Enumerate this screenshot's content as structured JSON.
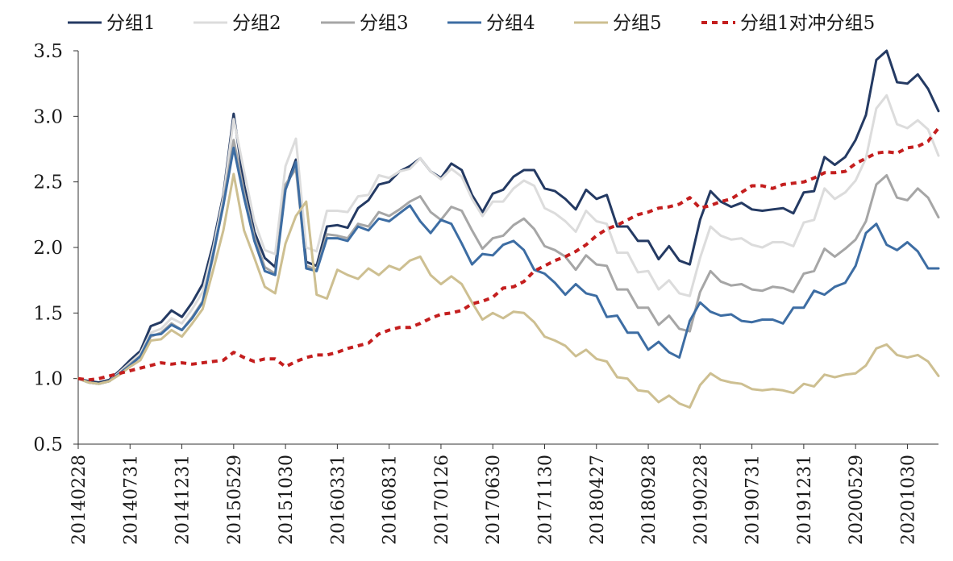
{
  "chart_data": {
    "type": "line",
    "title": "",
    "xlabel": "",
    "ylabel": "",
    "ylim": [
      0.5,
      3.5
    ],
    "yticks": [
      "0.5",
      "1.0",
      "1.5",
      "2.0",
      "2.5",
      "3.0",
      "3.5"
    ],
    "ytick_values": [
      0.5,
      1.0,
      1.5,
      2.0,
      2.5,
      3.0,
      3.5
    ],
    "xtick_labels": [
      "20140228",
      "20140731",
      "20141231",
      "20150529",
      "20151030",
      "20160331",
      "20160831",
      "20170126",
      "20170630",
      "20171130",
      "20180427",
      "20180928",
      "20190228",
      "20190731",
      "20191231",
      "20200529",
      "20201030"
    ],
    "xtick_indices": [
      0,
      5,
      10,
      15,
      20,
      25,
      30,
      35,
      40,
      45,
      50,
      55,
      60,
      65,
      70,
      75,
      80
    ],
    "n_points": 84,
    "legend_position": "top",
    "series": [
      {
        "name": "分组1",
        "color": "#243a63",
        "dash": false,
        "values": [
          1.0,
          0.98,
          0.97,
          0.99,
          1.06,
          1.14,
          1.21,
          1.4,
          1.43,
          1.52,
          1.47,
          1.58,
          1.72,
          2.02,
          2.4,
          3.02,
          2.48,
          2.12,
          1.92,
          1.85,
          2.45,
          2.67,
          1.89,
          1.86,
          2.16,
          2.17,
          2.15,
          2.3,
          2.36,
          2.48,
          2.5,
          2.58,
          2.62,
          2.68,
          2.58,
          2.53,
          2.64,
          2.59,
          2.4,
          2.27,
          2.41,
          2.44,
          2.54,
          2.59,
          2.59,
          2.45,
          2.43,
          2.37,
          2.29,
          2.44,
          2.37,
          2.4,
          2.16,
          2.16,
          2.05,
          2.05,
          1.91,
          2.01,
          1.9,
          1.87,
          2.21,
          2.43,
          2.35,
          2.31,
          2.34,
          2.29,
          2.28,
          2.29,
          2.3,
          2.26,
          2.42,
          2.43,
          2.69,
          2.63,
          2.69,
          2.82,
          3.01,
          3.43,
          3.5,
          3.26,
          3.25,
          3.32,
          3.21,
          3.04
        ]
      },
      {
        "name": "分组2",
        "color": "#dcdcdc",
        "dash": false,
        "values": [
          1.0,
          0.97,
          0.96,
          0.98,
          1.05,
          1.12,
          1.19,
          1.35,
          1.38,
          1.46,
          1.42,
          1.53,
          1.66,
          1.98,
          2.38,
          2.98,
          2.58,
          2.2,
          1.98,
          1.95,
          2.62,
          2.83,
          2.0,
          1.97,
          2.28,
          2.28,
          2.27,
          2.39,
          2.4,
          2.55,
          2.53,
          2.58,
          2.6,
          2.68,
          2.58,
          2.52,
          2.6,
          2.54,
          2.37,
          2.24,
          2.35,
          2.35,
          2.45,
          2.51,
          2.47,
          2.3,
          2.26,
          2.2,
          2.12,
          2.28,
          2.2,
          2.18,
          1.96,
          1.96,
          1.81,
          1.82,
          1.68,
          1.75,
          1.65,
          1.63,
          1.92,
          2.16,
          2.09,
          2.06,
          2.07,
          2.02,
          2.0,
          2.04,
          2.04,
          2.01,
          2.19,
          2.21,
          2.45,
          2.37,
          2.42,
          2.51,
          2.68,
          3.06,
          3.16,
          2.94,
          2.91,
          2.97,
          2.9,
          2.7
        ]
      },
      {
        "name": "分组3",
        "color": "#a6a6a6",
        "dash": false,
        "values": [
          1.0,
          0.97,
          0.96,
          0.98,
          1.04,
          1.11,
          1.17,
          1.32,
          1.35,
          1.42,
          1.37,
          1.47,
          1.59,
          1.92,
          2.34,
          2.82,
          2.42,
          2.08,
          1.85,
          1.8,
          2.48,
          2.6,
          1.86,
          1.83,
          2.1,
          2.09,
          2.07,
          2.18,
          2.16,
          2.27,
          2.24,
          2.29,
          2.35,
          2.39,
          2.27,
          2.21,
          2.31,
          2.28,
          2.13,
          1.99,
          2.07,
          2.09,
          2.17,
          2.22,
          2.14,
          2.01,
          1.98,
          1.93,
          1.83,
          1.94,
          1.87,
          1.86,
          1.68,
          1.68,
          1.54,
          1.54,
          1.41,
          1.48,
          1.38,
          1.36,
          1.66,
          1.82,
          1.74,
          1.71,
          1.72,
          1.68,
          1.67,
          1.7,
          1.69,
          1.66,
          1.8,
          1.82,
          1.99,
          1.93,
          1.99,
          2.06,
          2.2,
          2.48,
          2.55,
          2.38,
          2.36,
          2.45,
          2.38,
          2.23
        ]
      },
      {
        "name": "分组4",
        "color": "#3d6da3",
        "dash": false,
        "values": [
          1.0,
          0.97,
          0.96,
          0.98,
          1.04,
          1.1,
          1.17,
          1.33,
          1.34,
          1.41,
          1.37,
          1.46,
          1.58,
          1.94,
          2.32,
          2.76,
          2.38,
          2.05,
          1.82,
          1.79,
          2.44,
          2.65,
          1.84,
          1.82,
          2.07,
          2.07,
          2.05,
          2.16,
          2.13,
          2.22,
          2.2,
          2.26,
          2.32,
          2.2,
          2.11,
          2.21,
          2.18,
          2.03,
          1.87,
          1.95,
          1.94,
          2.02,
          2.05,
          1.98,
          1.83,
          1.8,
          1.73,
          1.64,
          1.72,
          1.65,
          1.63,
          1.47,
          1.48,
          1.35,
          1.35,
          1.22,
          1.28,
          1.2,
          1.16,
          1.44,
          1.58,
          1.51,
          1.48,
          1.49,
          1.44,
          1.43,
          1.45,
          1.45,
          1.42,
          1.54,
          1.54,
          1.67,
          1.64,
          1.7,
          1.73,
          1.86,
          2.11,
          2.18,
          2.02,
          1.98,
          2.04,
          1.97,
          1.84,
          1.84
        ]
      },
      {
        "name": "分组5",
        "color": "#cdbf91",
        "dash": false,
        "values": [
          1.0,
          0.97,
          0.96,
          0.98,
          1.03,
          1.09,
          1.14,
          1.29,
          1.3,
          1.37,
          1.32,
          1.42,
          1.53,
          1.82,
          2.13,
          2.56,
          2.13,
          1.92,
          1.7,
          1.65,
          2.03,
          2.24,
          2.35,
          1.64,
          1.61,
          1.83,
          1.79,
          1.76,
          1.84,
          1.79,
          1.86,
          1.83,
          1.9,
          1.93,
          1.79,
          1.72,
          1.78,
          1.72,
          1.58,
          1.45,
          1.5,
          1.46,
          1.51,
          1.5,
          1.43,
          1.32,
          1.29,
          1.25,
          1.17,
          1.22,
          1.15,
          1.13,
          1.01,
          1.0,
          0.91,
          0.9,
          0.82,
          0.87,
          0.81,
          0.78,
          0.95,
          1.04,
          0.99,
          0.97,
          0.96,
          0.92,
          0.91,
          0.92,
          0.91,
          0.89,
          0.96,
          0.94,
          1.03,
          1.01,
          1.03,
          1.04,
          1.1,
          1.23,
          1.26,
          1.18,
          1.16,
          1.18,
          1.13,
          1.02
        ]
      },
      {
        "name": "分组1对冲分组5",
        "color": "#c41e1e",
        "dash": true,
        "values": [
          1.0,
          0.99,
          1.0,
          1.02,
          1.04,
          1.06,
          1.08,
          1.1,
          1.12,
          1.11,
          1.12,
          1.11,
          1.12,
          1.13,
          1.14,
          1.2,
          1.16,
          1.13,
          1.15,
          1.15,
          1.09,
          1.13,
          1.16,
          1.18,
          1.18,
          1.2,
          1.23,
          1.25,
          1.27,
          1.34,
          1.37,
          1.39,
          1.39,
          1.42,
          1.46,
          1.49,
          1.5,
          1.52,
          1.57,
          1.59,
          1.62,
          1.69,
          1.7,
          1.74,
          1.82,
          1.86,
          1.9,
          1.93,
          1.97,
          2.02,
          2.09,
          2.14,
          2.17,
          2.21,
          2.25,
          2.27,
          2.3,
          2.31,
          2.33,
          2.38,
          2.3,
          2.32,
          2.35,
          2.37,
          2.42,
          2.47,
          2.47,
          2.45,
          2.48,
          2.49,
          2.5,
          2.53,
          2.57,
          2.57,
          2.58,
          2.64,
          2.68,
          2.72,
          2.73,
          2.72,
          2.76,
          2.77,
          2.81,
          2.91
        ]
      }
    ]
  }
}
